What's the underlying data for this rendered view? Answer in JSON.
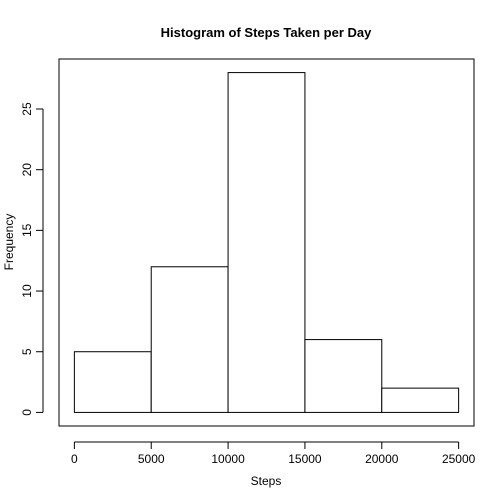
{
  "chart_data": {
    "type": "bar",
    "subtype": "histogram",
    "title": "Histogram of Steps Taken per Day",
    "xlabel": "Steps",
    "ylabel": "Frequency",
    "bins": [
      {
        "from": 0,
        "to": 5000,
        "count": 5
      },
      {
        "from": 5000,
        "to": 10000,
        "count": 12
      },
      {
        "from": 10000,
        "to": 15000,
        "count": 28
      },
      {
        "from": 15000,
        "to": 20000,
        "count": 6
      },
      {
        "from": 20000,
        "to": 25000,
        "count": 2
      }
    ],
    "xlim": [
      -1000,
      26000
    ],
    "ylim": [
      -1.12,
      29.12
    ],
    "xticks": [
      0,
      5000,
      10000,
      15000,
      20000,
      25000
    ],
    "yticks": [
      0,
      5,
      10,
      15,
      20,
      25
    ],
    "grid": false,
    "bar_fill": "#ffffff",
    "bar_stroke": "#000000"
  }
}
